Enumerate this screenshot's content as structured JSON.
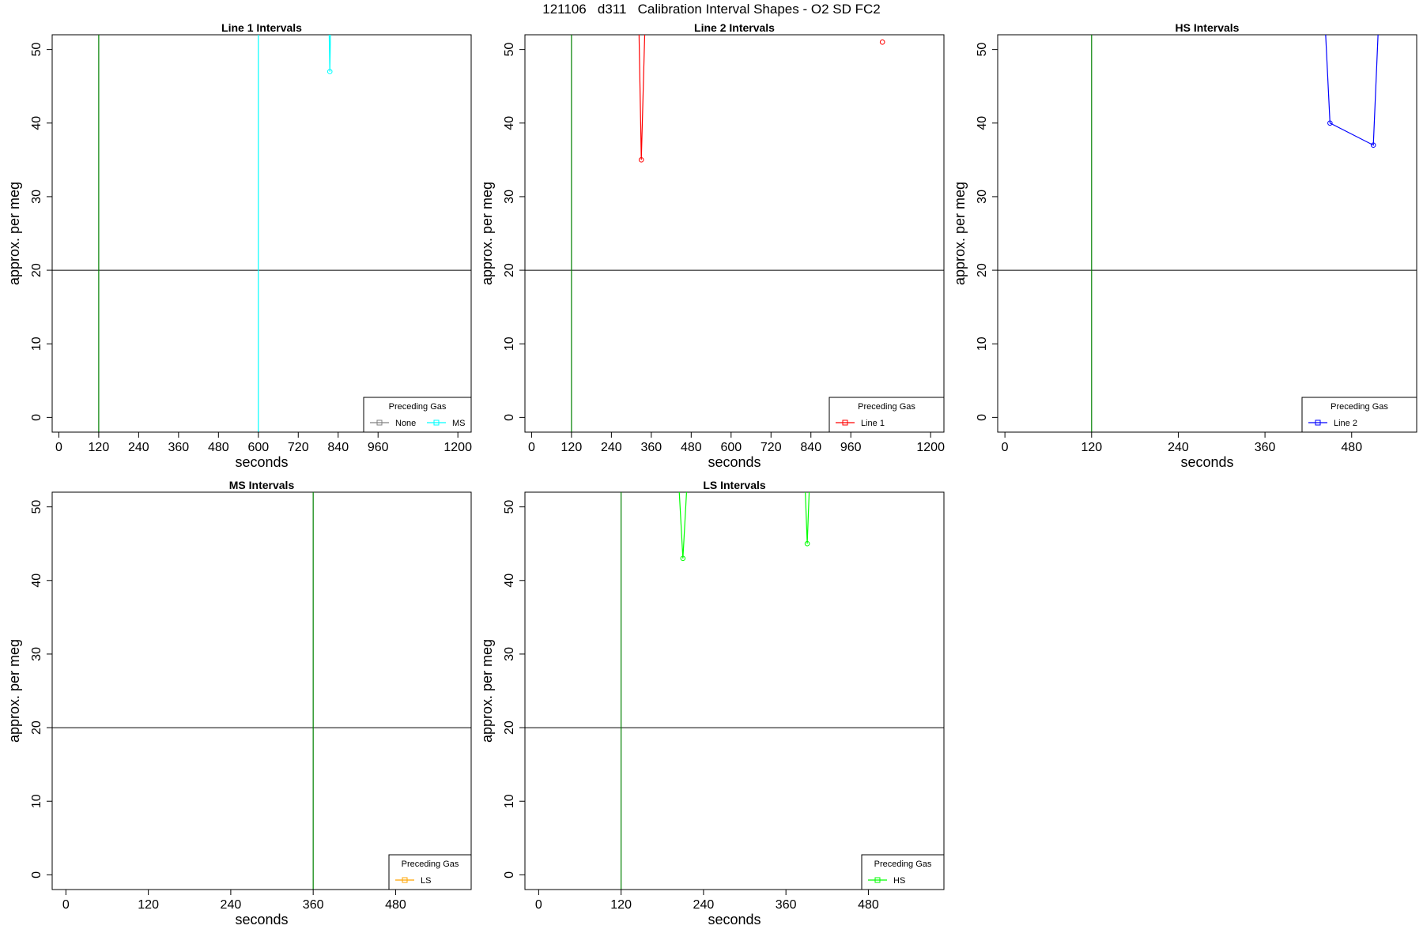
{
  "title": "121106   d311   Calibration Interval Shapes - O2 SD FC2",
  "colors": {
    "reference_line": "#008000",
    "hline": "#000000"
  },
  "chart_data": [
    {
      "type": "line",
      "title": "Line 1 Intervals",
      "xlabel": "seconds",
      "ylabel": "approx. per meg",
      "xlim": [
        -20,
        1240
      ],
      "ylim": [
        -2,
        52
      ],
      "xticks": [
        0,
        120,
        240,
        360,
        480,
        600,
        720,
        840,
        960,
        1200
      ],
      "yticks": [
        0,
        10,
        20,
        30,
        40,
        50
      ],
      "hline": 20,
      "vlines": [
        {
          "x": 120,
          "color": "#008000"
        },
        {
          "x": 600,
          "color": "#00ffff"
        }
      ],
      "legend": {
        "title": "Preceding Gas",
        "position": "bottom-right",
        "entries": [
          "None",
          "MS"
        ]
      },
      "series": [
        {
          "name": "None",
          "color": "#808080",
          "x": [],
          "y": []
        },
        {
          "name": "MS",
          "color": "#00ffff",
          "x": [
            810,
            815,
            820
          ],
          "y": [
            60,
            47,
            60
          ],
          "points": [
            [
              815,
              47
            ]
          ]
        }
      ]
    },
    {
      "type": "line",
      "title": "Line 2 Intervals",
      "xlabel": "seconds",
      "ylabel": "approx. per meg",
      "xlim": [
        -20,
        1240
      ],
      "ylim": [
        -2,
        52
      ],
      "xticks": [
        0,
        120,
        240,
        360,
        480,
        600,
        720,
        840,
        960,
        1200
      ],
      "yticks": [
        0,
        10,
        20,
        30,
        40,
        50
      ],
      "hline": 20,
      "vlines": [
        {
          "x": 120,
          "color": "#008000"
        }
      ],
      "legend": {
        "title": "Preceding Gas",
        "position": "bottom-right",
        "entries": [
          "Line 1"
        ]
      },
      "series": [
        {
          "name": "Line 1",
          "color": "#ff0000",
          "x": [
            320,
            330,
            345
          ],
          "y": [
            60,
            35,
            60
          ],
          "points": [
            [
              330,
              35
            ],
            [
              1055,
              51
            ]
          ]
        }
      ]
    },
    {
      "type": "line",
      "title": "HS Intervals",
      "xlabel": "seconds",
      "ylabel": "approx. per meg",
      "xlim": [
        -10,
        570
      ],
      "ylim": [
        -2,
        52
      ],
      "xticks": [
        0,
        120,
        240,
        360,
        480
      ],
      "yticks": [
        0,
        10,
        20,
        30,
        40,
        50
      ],
      "hline": 20,
      "vlines": [
        {
          "x": 120,
          "color": "#008000"
        }
      ],
      "legend": {
        "title": "Preceding Gas",
        "position": "bottom-right",
        "entries": [
          "Line 2"
        ]
      },
      "series": [
        {
          "name": "Line 2",
          "color": "#0000ff",
          "x": [
            440,
            450,
            510,
            520
          ],
          "y": [
            60,
            40,
            37,
            60
          ],
          "points": [
            [
              450,
              40
            ],
            [
              510,
              37
            ]
          ]
        }
      ]
    },
    {
      "type": "line",
      "title": "MS Intervals",
      "xlabel": "seconds",
      "ylabel": "approx. per meg",
      "xlim": [
        -20,
        590
      ],
      "ylim": [
        -2,
        52
      ],
      "xticks": [
        0,
        120,
        240,
        360,
        480
      ],
      "yticks": [
        0,
        10,
        20,
        30,
        40,
        50
      ],
      "hline": 20,
      "vlines": [
        {
          "x": 360,
          "color": "#008000"
        }
      ],
      "legend": {
        "title": "Preceding Gas",
        "position": "bottom-right",
        "entries": [
          "LS"
        ]
      },
      "series": [
        {
          "name": "LS",
          "color": "#ffa500",
          "x": [],
          "y": []
        }
      ]
    },
    {
      "type": "line",
      "title": "LS Intervals",
      "xlabel": "seconds",
      "ylabel": "approx. per meg",
      "xlim": [
        -20,
        590
      ],
      "ylim": [
        -2,
        52
      ],
      "xticks": [
        0,
        120,
        240,
        360,
        480
      ],
      "yticks": [
        0,
        10,
        20,
        30,
        40,
        50
      ],
      "hline": 20,
      "vlines": [
        {
          "x": 120,
          "color": "#008000"
        }
      ],
      "legend": {
        "title": "Preceding Gas",
        "position": "bottom-right",
        "entries": [
          "HS"
        ]
      },
      "series": [
        {
          "name": "HS",
          "color": "#00ff00",
          "x": [
            200,
            210,
            220
          ],
          "y": [
            60,
            43,
            60
          ],
          "points": [
            [
              210,
              43
            ]
          ]
        },
        {
          "name": "HS",
          "color": "#00ff00",
          "x": [
            385,
            391,
            397
          ],
          "y": [
            60,
            45,
            60
          ],
          "points": [
            [
              391,
              45
            ]
          ]
        }
      ]
    }
  ]
}
